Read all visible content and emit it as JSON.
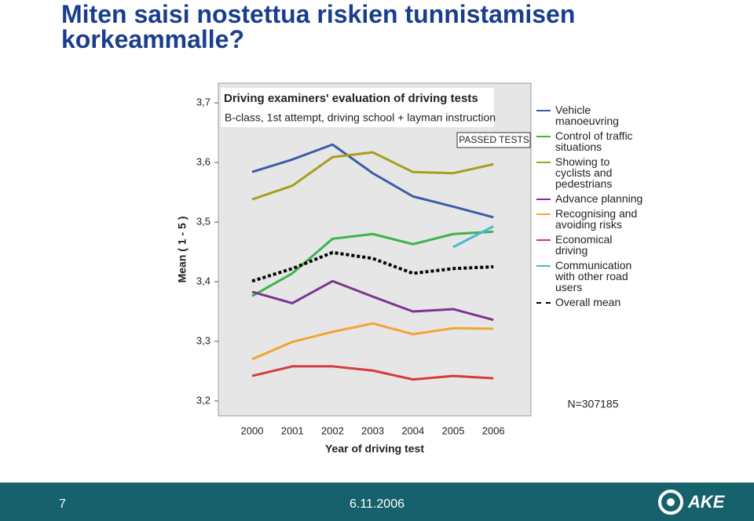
{
  "slide": {
    "title": "Miten saisi nostettua riskien tunnistamisen korkeammalle?",
    "page_number": "7",
    "date": "6.11.2006",
    "logo": "AKE"
  },
  "chart_data": {
    "type": "line",
    "title": "Driving examiners' evaluation of driving tests",
    "subtitle": "B-class, 1st attempt, driving school + layman instruction",
    "annotations": [
      "PASSED TESTS",
      "N=307185"
    ],
    "x_label": "Year of driving test",
    "y_label": "Mean ( 1 - 5 )",
    "categories": [
      "2000",
      "2001",
      "2002",
      "2003",
      "2004",
      "2005",
      "2006"
    ],
    "ylim": [
      3.175,
      3.733
    ],
    "yticks": [
      {
        "value": 3.2,
        "label": "3,2"
      },
      {
        "value": 3.3,
        "label": "3,3"
      },
      {
        "value": 3.4,
        "label": "3,4"
      },
      {
        "value": 3.5,
        "label": "3,5"
      },
      {
        "value": 3.6,
        "label": "3,6"
      },
      {
        "value": 3.7,
        "label": "3,7"
      }
    ],
    "series": [
      {
        "name": "Vehicle manoeuvring",
        "color": "#3d5ca8",
        "values": [
          3.584,
          3.605,
          3.63,
          3.582,
          3.543,
          3.526,
          3.508
        ]
      },
      {
        "name": "Control of traffic situations",
        "color": "#3cb44a",
        "values": [
          3.376,
          3.414,
          3.472,
          3.48,
          3.463,
          3.48,
          3.484
        ]
      },
      {
        "name": "Showing to cyclists and pedestrians",
        "color": "#a89e1e",
        "values": [
          3.538,
          3.561,
          3.609,
          3.617,
          3.584,
          3.582,
          3.597
        ]
      },
      {
        "name": "Advance planning",
        "color": "#7a3590",
        "values": [
          3.383,
          3.364,
          3.401,
          3.375,
          3.35,
          3.354,
          3.336
        ]
      },
      {
        "name": "Recognising and avoiding risks",
        "color": "#f2a535",
        "values": [
          3.27,
          3.299,
          3.316,
          3.33,
          3.312,
          3.322,
          3.321
        ]
      },
      {
        "name": "Economical driving",
        "color": "#d83a3a",
        "values": [
          3.242,
          3.258,
          3.258,
          3.251,
          3.236,
          3.242,
          3.238
        ]
      },
      {
        "name": "Communication with other road users",
        "color": "#4ab8d0",
        "values": [
          null,
          null,
          null,
          null,
          null,
          3.458,
          3.493
        ]
      },
      {
        "name": "Overall mean",
        "color": "#000000",
        "dashed": true,
        "values": [
          3.401,
          3.422,
          3.449,
          3.439,
          3.414,
          3.422,
          3.425
        ]
      }
    ]
  }
}
